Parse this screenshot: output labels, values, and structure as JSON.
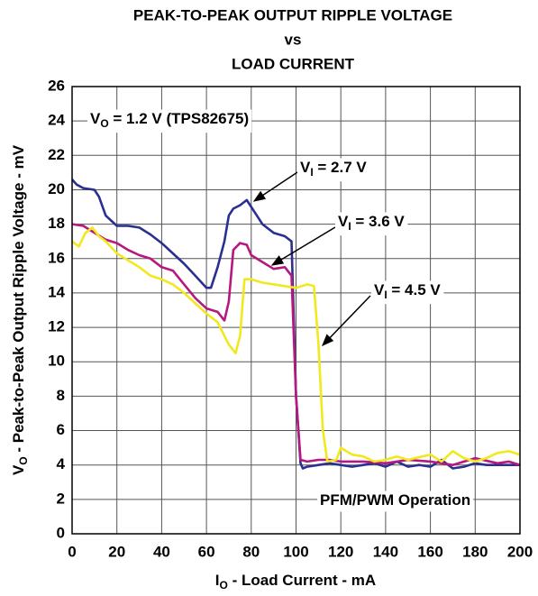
{
  "chart_data": {
    "type": "line",
    "title": [
      "PEAK-TO-PEAK OUTPUT RIPPLE VOLTAGE",
      "vs",
      "LOAD CURRENT"
    ],
    "x_label": [
      "I",
      "O",
      " - Load Current - mA"
    ],
    "y_label": [
      "V",
      "O",
      " - Peak-to-Peak Output Ripple Voltage - mV"
    ],
    "annotations": [
      [
        "V",
        "O",
        " = 1.2 V (TPS82675)"
      ],
      [
        "PFM/PWM Operation"
      ]
    ],
    "xlim": [
      0,
      200
    ],
    "xticks": [
      0,
      20,
      40,
      60,
      80,
      100,
      120,
      140,
      160,
      180,
      200
    ],
    "ylim": [
      0,
      26
    ],
    "yticks": [
      0,
      2,
      4,
      6,
      8,
      10,
      12,
      14,
      16,
      18,
      20,
      22,
      24,
      26
    ],
    "grid": true,
    "series": [
      {
        "label_parts": [
          "V",
          "I",
          " = 2.7 V"
        ],
        "color": "#2b3090",
        "x": [
          0,
          2,
          5,
          10,
          12,
          15,
          20,
          25,
          30,
          35,
          40,
          45,
          50,
          55,
          60,
          62,
          65,
          68,
          70,
          72,
          75,
          78,
          80,
          82,
          85,
          90,
          95,
          98,
          100,
          102,
          103,
          105,
          110,
          115,
          120,
          125,
          130,
          135,
          140,
          145,
          150,
          155,
          160,
          165,
          170,
          175,
          180,
          185,
          190,
          195,
          200
        ],
        "values": [
          20.6,
          20.3,
          20.1,
          20.0,
          19.6,
          18.5,
          17.9,
          17.9,
          17.8,
          17.4,
          16.9,
          16.3,
          15.7,
          15.0,
          14.3,
          14.3,
          15.5,
          17.0,
          18.5,
          18.9,
          19.1,
          19.4,
          19.0,
          18.6,
          18.0,
          17.5,
          17.3,
          17.0,
          8,
          4.1,
          3.8,
          3.9,
          4.0,
          4.1,
          4.0,
          3.9,
          4.0,
          4.1,
          3.9,
          4.2,
          3.9,
          4.0,
          3.9,
          4.3,
          3.8,
          3.9,
          4.1,
          4.0,
          4.0,
          4.0,
          4.0
        ]
      },
      {
        "label_parts": [
          "V",
          "I",
          " = 3.6 V"
        ],
        "color": "#b5197f",
        "x": [
          0,
          5,
          10,
          15,
          20,
          25,
          30,
          35,
          40,
          45,
          50,
          55,
          60,
          65,
          68,
          70,
          72,
          75,
          78,
          80,
          85,
          90,
          95,
          98,
          100,
          102,
          105,
          110,
          115,
          120,
          130,
          140,
          150,
          160,
          170,
          180,
          190,
          195,
          200
        ],
        "values": [
          18.0,
          17.9,
          17.5,
          17.1,
          16.9,
          16.5,
          16.2,
          16.0,
          15.5,
          15.3,
          14.5,
          13.7,
          13.1,
          12.9,
          12.4,
          13.5,
          16.5,
          16.9,
          16.8,
          16.2,
          15.8,
          15.4,
          15.5,
          15.0,
          8,
          4.3,
          4.2,
          4.3,
          4.3,
          4.2,
          4.2,
          4.1,
          4.3,
          4.2,
          4.0,
          4.4,
          4.1,
          4.2,
          4.0
        ]
      },
      {
        "label_parts": [
          "V",
          "I",
          " = 4.5 V"
        ],
        "color": "#f2e81e",
        "x": [
          0,
          3,
          6,
          9,
          12,
          15,
          20,
          25,
          30,
          35,
          40,
          45,
          50,
          55,
          60,
          65,
          70,
          73,
          75,
          77,
          80,
          85,
          90,
          95,
          100,
          105,
          108,
          110,
          112,
          114,
          118,
          120,
          125,
          130,
          135,
          140,
          145,
          150,
          160,
          165,
          170,
          175,
          180,
          185,
          190,
          195,
          200
        ],
        "values": [
          17.0,
          16.7,
          17.5,
          17.8,
          17.3,
          17.0,
          16.3,
          15.9,
          15.5,
          15.0,
          14.8,
          14.5,
          14.0,
          13.4,
          12.8,
          12.3,
          11.0,
          10.5,
          11.5,
          14.8,
          14.8,
          14.6,
          14.5,
          14.4,
          14.3,
          14.5,
          14.4,
          11,
          6,
          4.2,
          4.3,
          5.0,
          4.6,
          4.5,
          4.2,
          4.3,
          4.5,
          4.3,
          4.6,
          4.2,
          4.8,
          4.4,
          4.2,
          4.4,
          4.7,
          4.8,
          4.6
        ]
      }
    ]
  }
}
